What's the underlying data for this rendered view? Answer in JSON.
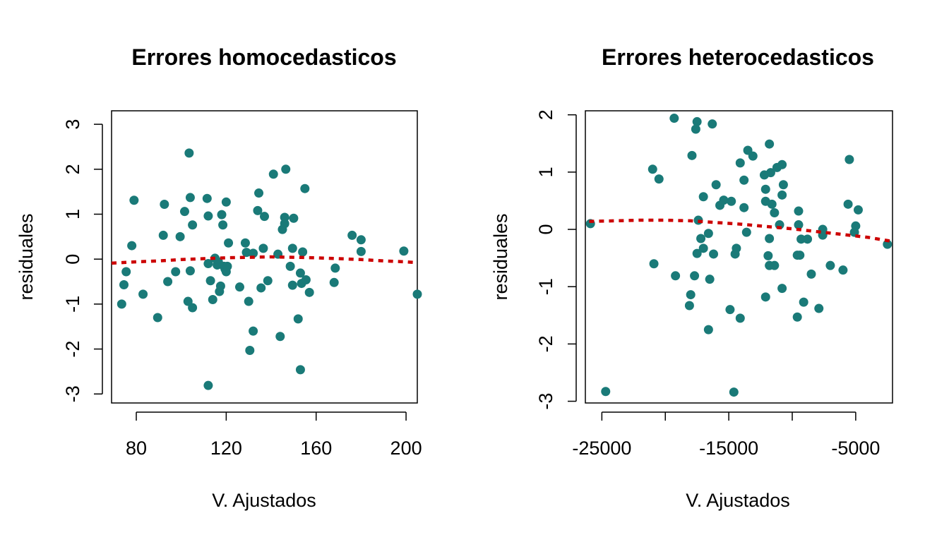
{
  "colors": {
    "points": "#1a7a78",
    "trend": "#cc0000",
    "axes": "#000000"
  },
  "chart_data": [
    {
      "type": "scatter",
      "title": "Errores homocedasticos",
      "xlabel": "V. Ajustados",
      "ylabel": "residuales",
      "xlim": [
        69,
        205
      ],
      "ylim": [
        -3.2,
        3.3
      ],
      "xticks": [
        80,
        120,
        160,
        200
      ],
      "xtick_labels": [
        "80",
        "120",
        "160",
        "200"
      ],
      "yticks": [
        -3,
        -2,
        -1,
        0,
        1,
        2,
        3
      ],
      "ytick_labels": [
        "-3",
        "-2",
        "-1",
        "0",
        "1",
        "2",
        "3"
      ],
      "grid": false,
      "points": [
        [
          73.5,
          -1.0
        ],
        [
          74.5,
          -0.57
        ],
        [
          75.5,
          -0.28
        ],
        [
          78.0,
          0.3
        ],
        [
          79.0,
          1.31
        ],
        [
          83.0,
          -0.78
        ],
        [
          89.5,
          -1.3
        ],
        [
          92.0,
          0.53
        ],
        [
          92.5,
          1.22
        ],
        [
          94.0,
          -0.5
        ],
        [
          97.5,
          -0.28
        ],
        [
          99.5,
          0.5
        ],
        [
          101.5,
          1.06
        ],
        [
          103.0,
          -0.94
        ],
        [
          103.5,
          2.36
        ],
        [
          104.0,
          1.37
        ],
        [
          104.0,
          -0.26
        ],
        [
          105.0,
          0.76
        ],
        [
          105.0,
          -1.08
        ],
        [
          111.5,
          1.35
        ],
        [
          112.0,
          0.96
        ],
        [
          112.0,
          -0.1
        ],
        [
          112.0,
          -2.81
        ],
        [
          113.0,
          -0.48
        ],
        [
          114.0,
          -0.9
        ],
        [
          115.0,
          0.02
        ],
        [
          116.0,
          -0.13
        ],
        [
          116.5,
          -0.06
        ],
        [
          117.0,
          -0.72
        ],
        [
          117.5,
          -0.6
        ],
        [
          118.0,
          0.99
        ],
        [
          118.5,
          0.76
        ],
        [
          119.0,
          -0.16
        ],
        [
          119.5,
          -0.22
        ],
        [
          120.0,
          1.27
        ],
        [
          120.0,
          -0.28
        ],
        [
          120.5,
          -0.16
        ],
        [
          121.0,
          0.36
        ],
        [
          126.0,
          -0.62
        ],
        [
          128.5,
          0.36
        ],
        [
          129.0,
          0.15
        ],
        [
          130.0,
          -0.94
        ],
        [
          130.5,
          -2.03
        ],
        [
          132.0,
          0.13
        ],
        [
          132.0,
          -1.6
        ],
        [
          134.0,
          1.08
        ],
        [
          134.5,
          1.47
        ],
        [
          135.5,
          -0.64
        ],
        [
          136.5,
          0.24
        ],
        [
          137.0,
          0.95
        ],
        [
          138.5,
          -0.48
        ],
        [
          141.0,
          1.89
        ],
        [
          143.0,
          0.11
        ],
        [
          144.0,
          -1.72
        ],
        [
          145.0,
          0.66
        ],
        [
          146.0,
          0.79
        ],
        [
          146.0,
          0.93
        ],
        [
          146.5,
          2.0
        ],
        [
          148.5,
          -0.16
        ],
        [
          149.5,
          0.24
        ],
        [
          149.5,
          -0.58
        ],
        [
          150.0,
          0.91
        ],
        [
          152.0,
          -1.33
        ],
        [
          153.0,
          -0.31
        ],
        [
          153.0,
          -2.46
        ],
        [
          153.5,
          -0.54
        ],
        [
          154.0,
          0.16
        ],
        [
          155.0,
          1.57
        ],
        [
          155.5,
          -0.46
        ],
        [
          157.0,
          -0.74
        ],
        [
          168.0,
          -0.52
        ],
        [
          168.5,
          -0.2
        ],
        [
          176.0,
          0.53
        ],
        [
          180.0,
          0.43
        ],
        [
          180.0,
          0.17
        ],
        [
          199.0,
          0.18
        ],
        [
          205.0,
          -0.78
        ]
      ],
      "trend": [
        [
          69,
          -0.09
        ],
        [
          80,
          -0.06
        ],
        [
          90,
          -0.04
        ],
        [
          100,
          -0.01
        ],
        [
          110,
          0.01
        ],
        [
          120,
          0.03
        ],
        [
          130,
          0.04
        ],
        [
          140,
          0.05
        ],
        [
          150,
          0.04
        ],
        [
          160,
          0.03
        ],
        [
          170,
          0.01
        ],
        [
          180,
          -0.01
        ],
        [
          190,
          -0.04
        ],
        [
          200,
          -0.06
        ],
        [
          205,
          -0.08
        ]
      ]
    },
    {
      "type": "scatter",
      "title": "Errores heterocedasticos",
      "xlabel": "V. Ajustados",
      "ylabel": "residuales",
      "xlim": [
        -26300,
        -2100
      ],
      "ylim": [
        -3.03,
        2.07
      ],
      "xticks": [
        -25000,
        -15000,
        -5000
      ],
      "xtick_labels": [
        "-25000",
        "-15000",
        "-5000"
      ],
      "minor_xticks": [
        -20000,
        -10000
      ],
      "yticks": [
        -3,
        -2,
        -1,
        0,
        1,
        2
      ],
      "ytick_labels": [
        "-3",
        "-2",
        "-1",
        "0",
        "1",
        "2"
      ],
      "grid": false,
      "points": [
        [
          -25900,
          0.1
        ],
        [
          -24700,
          -2.83
        ],
        [
          -21000,
          1.05
        ],
        [
          -20900,
          -0.6
        ],
        [
          -20500,
          0.88
        ],
        [
          -19300,
          1.94
        ],
        [
          -19200,
          -0.81
        ],
        [
          -18100,
          -1.33
        ],
        [
          -18000,
          -1.14
        ],
        [
          -17900,
          1.29
        ],
        [
          -17700,
          -0.81
        ],
        [
          -17600,
          1.75
        ],
        [
          -17500,
          1.88
        ],
        [
          -17500,
          -0.42
        ],
        [
          -17400,
          0.16
        ],
        [
          -17200,
          -0.16
        ],
        [
          -17000,
          0.57
        ],
        [
          -17000,
          -0.33
        ],
        [
          -16600,
          -0.07
        ],
        [
          -16600,
          -1.75
        ],
        [
          -16500,
          -0.87
        ],
        [
          -16300,
          1.84
        ],
        [
          -16200,
          -0.43
        ],
        [
          -16000,
          0.78
        ],
        [
          -15700,
          0.42
        ],
        [
          -15400,
          0.51
        ],
        [
          -14900,
          -1.4
        ],
        [
          -14800,
          0.49
        ],
        [
          -14600,
          -2.84
        ],
        [
          -14500,
          -0.43
        ],
        [
          -14400,
          -0.33
        ],
        [
          -14100,
          -1.55
        ],
        [
          -14100,
          1.16
        ],
        [
          -13800,
          0.86
        ],
        [
          -13800,
          0.38
        ],
        [
          -13600,
          -0.05
        ],
        [
          -13500,
          1.38
        ],
        [
          -13100,
          1.28
        ],
        [
          -12200,
          0.95
        ],
        [
          -12100,
          -1.18
        ],
        [
          -12100,
          0.7
        ],
        [
          -12100,
          0.49
        ],
        [
          -11900,
          -0.46
        ],
        [
          -11800,
          1.49
        ],
        [
          -11800,
          -0.16
        ],
        [
          -11800,
          -0.63
        ],
        [
          -11700,
          0.99
        ],
        [
          -11600,
          0.44
        ],
        [
          -11400,
          0.29
        ],
        [
          -11400,
          -0.63
        ],
        [
          -11200,
          1.08
        ],
        [
          -11000,
          0.08
        ],
        [
          -10800,
          1.13
        ],
        [
          -10800,
          -1.03
        ],
        [
          -10800,
          0.6
        ],
        [
          -10700,
          0.78
        ],
        [
          -9600,
          -1.53
        ],
        [
          -9600,
          -0.45
        ],
        [
          -9500,
          0.32
        ],
        [
          -9500,
          0.08
        ],
        [
          -9400,
          -0.45
        ],
        [
          -9300,
          -0.17
        ],
        [
          -9100,
          -1.27
        ],
        [
          -8800,
          -0.17
        ],
        [
          -8500,
          -0.78
        ],
        [
          -7900,
          -1.38
        ],
        [
          -7600,
          0.0
        ],
        [
          -7600,
          -0.1
        ],
        [
          -7000,
          -0.63
        ],
        [
          -6000,
          -0.71
        ],
        [
          -5600,
          0.44
        ],
        [
          -5500,
          1.22
        ],
        [
          -5100,
          -0.05
        ],
        [
          -5000,
          0.06
        ],
        [
          -4800,
          0.34
        ],
        [
          -2500,
          -0.26
        ]
      ],
      "trend": [
        [
          -26000,
          0.14
        ],
        [
          -24000,
          0.15
        ],
        [
          -22000,
          0.16
        ],
        [
          -20000,
          0.16
        ],
        [
          -18000,
          0.15
        ],
        [
          -16000,
          0.12
        ],
        [
          -14000,
          0.09
        ],
        [
          -12000,
          0.05
        ],
        [
          -10000,
          0.01
        ],
        [
          -8000,
          -0.04
        ],
        [
          -6000,
          -0.09
        ],
        [
          -4000,
          -0.14
        ],
        [
          -2100,
          -0.21
        ]
      ]
    }
  ]
}
